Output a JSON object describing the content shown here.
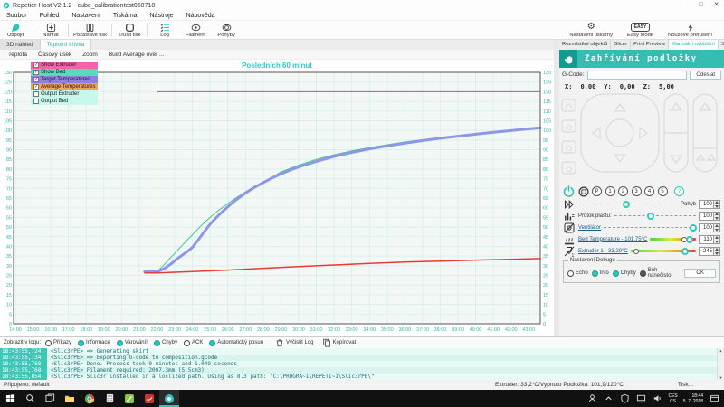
{
  "colors": {
    "accent": "#2fc4ba",
    "banner": "#35bdb2",
    "chart_title": "#2ec8c8",
    "tick": "#2fb7ad"
  },
  "window": {
    "title": "Repetier-Host V2.1.2 - cube_calibrationtest050718",
    "controls": [
      "–",
      "□",
      "✕"
    ]
  },
  "menu": [
    "Soubor",
    "Pohled",
    "Nastavení",
    "Tiskárna",
    "Nástroje",
    "Nápověda"
  ],
  "toolbar": {
    "left": [
      {
        "label": "Odpojit",
        "icon": "disconnect-icon"
      },
      {
        "label": "Nahrát",
        "icon": "load-icon"
      },
      {
        "label": "Pozastavit tisk",
        "icon": "pause-print-icon"
      },
      {
        "label": "Zrušit tisk",
        "icon": "stop-print-icon"
      },
      {
        "label": "Log",
        "icon": "log-icon"
      },
      {
        "label": "Filament",
        "icon": "filament-icon"
      },
      {
        "label": "Pohyby",
        "icon": "moves-icon"
      }
    ],
    "right": [
      {
        "label": "Nastavení tiskárny",
        "icon": "printer-settings-gear-icon"
      },
      {
        "label": "Easy Mode",
        "icon": "easy-mode-badge"
      },
      {
        "label": "Nouzové přerušení",
        "icon": "emergency-stop-lightning-icon"
      }
    ],
    "easy_badge": "EASY"
  },
  "view_tabs": [
    {
      "label": "3D náhled",
      "active": false
    },
    {
      "label": "Teplotní křivka",
      "active": true
    }
  ],
  "chart_menu": [
    "Teplota",
    "Časový úsek",
    "Zoom",
    "Build Average over ..."
  ],
  "legend": [
    {
      "label": "Show Extruder",
      "checked": true,
      "color": "#f263ab"
    },
    {
      "label": "Show Bed",
      "checked": true,
      "color": "#57dbb9"
    },
    {
      "label": "Target Temperatures",
      "checked": true,
      "color": "#8f7fe0"
    },
    {
      "label": "Average Temperatures",
      "checked": true,
      "color": "#f2a159"
    },
    {
      "label": "Output Extruder",
      "checked": false,
      "color": "#c8f7ec"
    },
    {
      "label": "Output Bed",
      "checked": false,
      "color": "#c8f7ec"
    }
  ],
  "chart_data": {
    "type": "line",
    "title": "Posledních 60 minut",
    "xlabel": "",
    "ylabel": "",
    "xlim": [
      13.9,
      43.65
    ],
    "ylim": [
      0,
      130
    ],
    "ytick_step": 5,
    "grid": true,
    "xtick_labels": [
      "14:00",
      "15:00",
      "16:00",
      "17:00",
      "18:00",
      "19:00",
      "20:00",
      "21:00",
      "22:00",
      "23:00",
      "24:00",
      "25:00",
      "26:00",
      "27:00",
      "28:00",
      "29:00",
      "30:00",
      "31:00",
      "32:00",
      "33:00",
      "34:00",
      "35:00",
      "36:00",
      "37:00",
      "38:00",
      "39:00",
      "40:00",
      "41:00",
      "42:00",
      "43:00"
    ],
    "series": [
      {
        "name": "Bed target temperature",
        "color": "#7d7d50",
        "width": 1,
        "points": [
          [
            22,
            0
          ],
          [
            22,
            120
          ],
          [
            43.65,
            120
          ]
        ]
      },
      {
        "name": "Average bed temperature",
        "color": "#44c58c",
        "width": 1,
        "points": [
          [
            22,
            27
          ],
          [
            22.4,
            30.5
          ],
          [
            22.8,
            34.5
          ],
          [
            23.1,
            37.4
          ],
          [
            23.4,
            40.3
          ],
          [
            23.7,
            43.2
          ],
          [
            24,
            46
          ],
          [
            24.5,
            50.8
          ],
          [
            25,
            55
          ],
          [
            25.5,
            58.8
          ],
          [
            26,
            62.2
          ],
          [
            26.5,
            65.3
          ],
          [
            27,
            68.2
          ],
          [
            27.5,
            70.9
          ],
          [
            28,
            73.4
          ],
          [
            28.5,
            75.7
          ],
          [
            29,
            78.5
          ],
          [
            29.5,
            80.3
          ],
          [
            30,
            82
          ],
          [
            31,
            85
          ],
          [
            32,
            87.4
          ],
          [
            33,
            89.4
          ],
          [
            34,
            91.1
          ],
          [
            35,
            92.6
          ],
          [
            36,
            94
          ],
          [
            37,
            95.2
          ],
          [
            38,
            96.3
          ],
          [
            39,
            97.3
          ],
          [
            40,
            98.2
          ],
          [
            41,
            99.1
          ],
          [
            42,
            100
          ],
          [
            43,
            100.8
          ],
          [
            43.65,
            101.3
          ]
        ]
      },
      {
        "name": "Bed temperature",
        "color": "#8d96e8",
        "width": 3,
        "points": [
          [
            21.3,
            27
          ],
          [
            22,
            27
          ],
          [
            22.4,
            28.5
          ],
          [
            22.8,
            31
          ],
          [
            23.1,
            33.3
          ],
          [
            23.4,
            35.3
          ],
          [
            23.7,
            37.2
          ],
          [
            24,
            39.5
          ],
          [
            24.3,
            43
          ],
          [
            24.7,
            48
          ],
          [
            25,
            51.5
          ],
          [
            25.5,
            56.3
          ],
          [
            26,
            60.5
          ],
          [
            26.5,
            64.3
          ],
          [
            27,
            67.6
          ],
          [
            27.5,
            70.5
          ],
          [
            28,
            73
          ],
          [
            28.5,
            75.4
          ],
          [
            29,
            77.5
          ],
          [
            29.5,
            79.4
          ],
          [
            30,
            81.1
          ],
          [
            31,
            84
          ],
          [
            32,
            86.5
          ],
          [
            33,
            88.6
          ],
          [
            34,
            90.4
          ],
          [
            35,
            92
          ],
          [
            36,
            93.4
          ],
          [
            37,
            94.7
          ],
          [
            38,
            95.9
          ],
          [
            39,
            97
          ],
          [
            40,
            98
          ],
          [
            41,
            99
          ],
          [
            42,
            99.9
          ],
          [
            43,
            100.8
          ],
          [
            43.65,
            101.3
          ]
        ]
      },
      {
        "name": "Extruder temperature",
        "color": "#ea3b30",
        "width": 1.5,
        "points": [
          [
            21.3,
            26.3
          ],
          [
            22,
            26.3
          ],
          [
            24,
            27
          ],
          [
            26,
            27.8
          ],
          [
            28,
            28.7
          ],
          [
            30,
            29.6
          ],
          [
            32,
            30.4
          ],
          [
            34,
            31.2
          ],
          [
            36,
            31.9
          ],
          [
            38,
            32.4
          ],
          [
            40,
            32.9
          ],
          [
            42,
            33.3
          ],
          [
            43.65,
            33.7
          ]
        ]
      }
    ]
  },
  "right_panel": {
    "tabs": [
      {
        "label": "Rozmístění objektů",
        "active": false
      },
      {
        "label": "Slicer",
        "active": false
      },
      {
        "label": "Print Preview",
        "active": false
      },
      {
        "label": "Manuální ovládání",
        "active": true
      },
      {
        "label": "SD karta",
        "active": false
      }
    ],
    "banner": "Zahřívání podložky",
    "gcode": {
      "label": "G-Code:",
      "value": "",
      "send": "Odeslat"
    },
    "coords": {
      "x_label": "X:",
      "x": "0,00",
      "y_label": "Y:",
      "y": "0,00",
      "z_label": "Z:",
      "z": "5,00"
    },
    "power": {
      "presets": [
        "P",
        "1",
        "2",
        "3",
        "4",
        "5"
      ],
      "help": "?"
    },
    "sliders": [
      {
        "icon": "feedrate-icon",
        "label": "Pohyb",
        "label_pos": "right",
        "link": false,
        "track": "plain",
        "knob": 48,
        "marker": null,
        "value": "100"
      },
      {
        "icon": "flow-icon",
        "label": "Průtok plastu:",
        "label_pos": "left",
        "link": false,
        "track": "plain",
        "knob": 45,
        "marker": null,
        "value": "100"
      },
      {
        "icon": "fan-icon",
        "label": "Ventilátor",
        "label_pos": "left",
        "link": true,
        "track": "plain",
        "knob": 97,
        "marker": null,
        "value": "100"
      },
      {
        "icon": "bed-temp-icon",
        "label": "Bed Temperature - 101,75°C",
        "label_pos": "left",
        "link": true,
        "track": "heat",
        "knob": 87,
        "marker": 74,
        "value": "110"
      },
      {
        "icon": "extruder-temp-icon",
        "label": "Extruder 1 - 33,29°C",
        "label_pos": "left",
        "link": true,
        "track": "heat",
        "knob": 84,
        "marker": 8,
        "value": "245"
      }
    ],
    "debug": {
      "title": "Nastavení Debugu",
      "items": [
        {
          "label": "Echo",
          "state": "off"
        },
        {
          "label": "Info",
          "state": "on"
        },
        {
          "label": "Chyby",
          "state": "on"
        },
        {
          "label": "Běh nanečisto",
          "state": "dark"
        }
      ],
      "ok": "OK"
    }
  },
  "log": {
    "show_label": "Zobrazit v logu:",
    "filters": [
      {
        "label": "Příkazy",
        "on": false
      },
      {
        "label": "Informace",
        "on": true
      },
      {
        "label": "Varování!",
        "on": true
      },
      {
        "label": "Chyby",
        "on": true
      },
      {
        "label": "ACK",
        "on": false
      },
      {
        "label": "Automatický posun",
        "on": true
      }
    ],
    "buttons": [
      {
        "label": "Vyčistit Log",
        "icon": "trash-icon"
      },
      {
        "label": "Kopírovat",
        "icon": "copy-icon"
      }
    ],
    "rows": [
      {
        "time": "18:43:55,724",
        "msg": "<Slic3rPE> => Generating skirt"
      },
      {
        "time": "18:43:55,734",
        "msg": "<Slic3rPE> => Exporting G-code to composition.gcode"
      },
      {
        "time": "18:43:55,768",
        "msg": "<Slic3rPE> Done. Process took 0 minutes and 1.049 seconds"
      },
      {
        "time": "18:43:55,768",
        "msg": "<Slic3rPE> Filament required: 2007.3mm (5.5cm3)"
      },
      {
        "time": "18:43:55,854",
        "msg": "<Slic3rPE> Slic3r installed in a loclized path. Using as 8.3 path: \"C:\\PROGRA~1\\REPETI~1\\Slic3rPE\\\""
      }
    ]
  },
  "statusbar": {
    "left": "Připojeno: default",
    "temps": "Extruder: 33,2°C/Vypnuto Podložka: 101,9/120°C",
    "right": "Tisk..."
  },
  "taskbar": {
    "apps": [
      {
        "icon": "start-icon",
        "active": false
      },
      {
        "icon": "search-icon",
        "active": false
      },
      {
        "icon": "task-view-icon",
        "active": false
      },
      {
        "icon": "folder-icon",
        "active": false
      },
      {
        "icon": "chrome-icon",
        "active": false
      },
      {
        "icon": "calculator-icon",
        "active": false
      },
      {
        "icon": "notepad-icon",
        "active": false
      },
      {
        "icon": "pdf-icon",
        "active": false
      },
      {
        "icon": "repetier-icon",
        "active": true
      }
    ],
    "tray_icons": [
      "person-icon",
      "caret-up-icon",
      "shield-icon",
      "monitor-icon",
      "speaker-icon"
    ],
    "lang": [
      "CES",
      "CS"
    ],
    "clock": [
      "18:44",
      "5. 7. 2018"
    ]
  }
}
